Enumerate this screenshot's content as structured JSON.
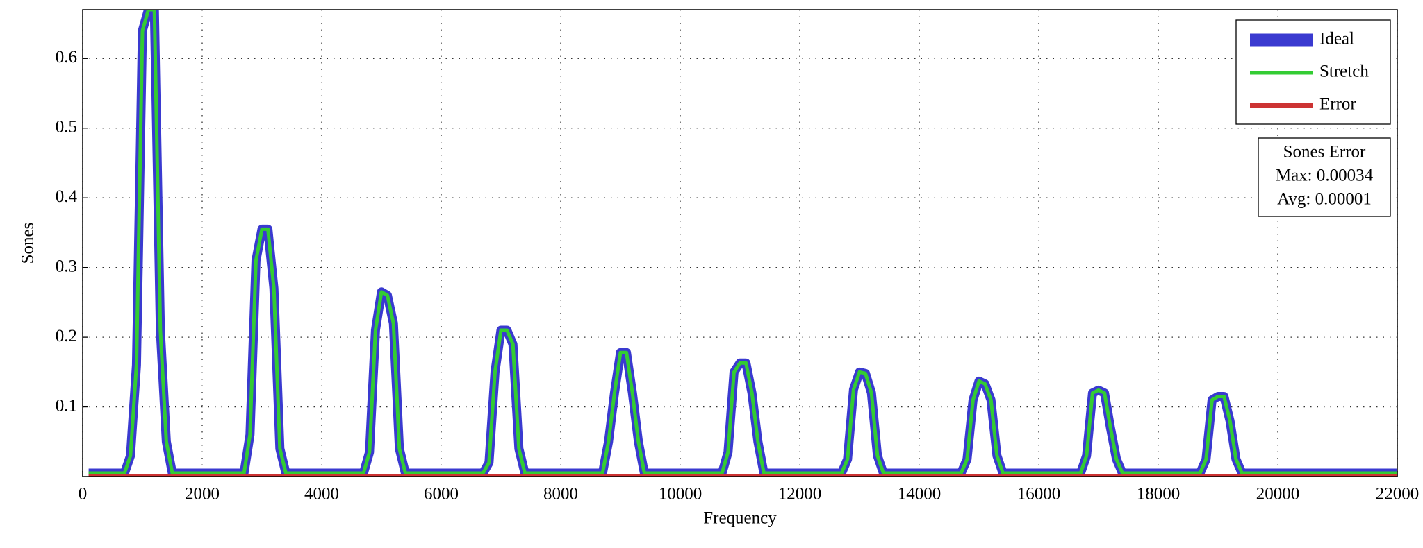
{
  "chart_data": {
    "type": "line",
    "x_label": "Frequency",
    "y_label": "Sones",
    "x": [
      100,
      700,
      800,
      900,
      1000,
      1100,
      1200,
      1300,
      1400,
      1500,
      2700,
      2800,
      2900,
      3000,
      3100,
      3200,
      3300,
      3400,
      3500,
      4700,
      4800,
      4900,
      5000,
      5100,
      5200,
      5300,
      5400,
      5500,
      6700,
      6800,
      6900,
      7000,
      7100,
      7200,
      7300,
      7400,
      7500,
      8700,
      8800,
      8900,
      9000,
      9100,
      9200,
      9300,
      9400,
      9500,
      10700,
      10800,
      10900,
      11000,
      11100,
      11200,
      11300,
      11400,
      11500,
      12700,
      12800,
      12900,
      13000,
      13100,
      13200,
      13300,
      13400,
      13500,
      14700,
      14800,
      14900,
      15000,
      15100,
      15200,
      15300,
      15400,
      15500,
      16700,
      16800,
      16900,
      17000,
      17100,
      17200,
      17300,
      17400,
      17500,
      18700,
      18800,
      18900,
      19000,
      19100,
      19200,
      19300,
      19400,
      19500,
      22000
    ],
    "series": [
      {
        "name": "Ideal",
        "color": "#3a3ad0",
        "values": [
          0.005,
          0.005,
          0.03,
          0.16,
          0.64,
          0.67,
          0.67,
          0.21,
          0.05,
          0.005,
          0.005,
          0.06,
          0.31,
          0.355,
          0.355,
          0.27,
          0.04,
          0.005,
          0.005,
          0.005,
          0.035,
          0.21,
          0.265,
          0.26,
          0.22,
          0.04,
          0.005,
          0.005,
          0.005,
          0.02,
          0.15,
          0.21,
          0.21,
          0.19,
          0.04,
          0.005,
          0.005,
          0.005,
          0.05,
          0.12,
          0.178,
          0.178,
          0.12,
          0.05,
          0.005,
          0.005,
          0.005,
          0.035,
          0.15,
          0.163,
          0.163,
          0.12,
          0.05,
          0.005,
          0.005,
          0.005,
          0.025,
          0.125,
          0.15,
          0.148,
          0.12,
          0.03,
          0.005,
          0.005,
          0.005,
          0.025,
          0.11,
          0.137,
          0.133,
          0.11,
          0.03,
          0.005,
          0.005,
          0.005,
          0.03,
          0.12,
          0.124,
          0.12,
          0.07,
          0.025,
          0.005,
          0.005,
          0.005,
          0.025,
          0.11,
          0.115,
          0.115,
          0.08,
          0.025,
          0.005,
          0.005,
          0.005
        ]
      },
      {
        "name": "Stretch",
        "color": "#33cc33",
        "values": [
          0.005,
          0.005,
          0.03,
          0.16,
          0.64,
          0.67,
          0.67,
          0.21,
          0.05,
          0.005,
          0.005,
          0.06,
          0.31,
          0.355,
          0.355,
          0.27,
          0.04,
          0.005,
          0.005,
          0.005,
          0.035,
          0.21,
          0.265,
          0.26,
          0.22,
          0.04,
          0.005,
          0.005,
          0.005,
          0.02,
          0.15,
          0.21,
          0.21,
          0.19,
          0.04,
          0.005,
          0.005,
          0.005,
          0.05,
          0.12,
          0.178,
          0.178,
          0.12,
          0.05,
          0.005,
          0.005,
          0.005,
          0.035,
          0.15,
          0.163,
          0.163,
          0.12,
          0.05,
          0.005,
          0.005,
          0.005,
          0.025,
          0.125,
          0.15,
          0.148,
          0.12,
          0.03,
          0.005,
          0.005,
          0.005,
          0.025,
          0.11,
          0.137,
          0.133,
          0.11,
          0.03,
          0.005,
          0.005,
          0.005,
          0.03,
          0.12,
          0.124,
          0.12,
          0.07,
          0.025,
          0.005,
          0.005,
          0.005,
          0.025,
          0.11,
          0.115,
          0.115,
          0.08,
          0.025,
          0.005,
          0.005,
          0.005
        ]
      },
      {
        "name": "Error",
        "color": "#cc3333",
        "values": [
          0,
          0,
          0,
          0,
          0,
          0,
          0,
          0,
          0,
          0,
          0,
          0,
          0,
          0,
          0,
          0,
          0,
          0,
          0,
          0,
          0,
          0,
          0,
          0,
          0,
          0,
          0,
          0,
          0,
          0,
          0,
          0,
          0,
          0,
          0,
          0,
          0,
          0,
          0,
          0,
          0,
          0,
          0,
          0,
          0,
          0,
          0,
          0,
          0,
          0,
          0,
          0,
          0,
          0,
          0,
          0,
          0,
          0,
          0,
          0,
          0,
          0,
          0,
          0,
          0,
          0,
          0,
          0,
          0,
          0,
          0,
          0,
          0,
          0,
          0,
          0,
          0,
          0,
          0,
          0,
          0,
          0,
          0,
          0,
          0,
          0,
          0,
          0,
          0,
          0,
          0,
          0
        ]
      }
    ],
    "xlim": [
      0,
      22000
    ],
    "xticks": [
      0,
      2000,
      4000,
      6000,
      8000,
      10000,
      12000,
      14000,
      16000,
      18000,
      20000,
      22000
    ],
    "ylim": [
      0,
      0.67
    ],
    "yticks": [
      0.1,
      0.2,
      0.3,
      0.4,
      0.5,
      0.6
    ],
    "grid": true,
    "legend": "northeast",
    "annotation": [
      "Sones Error",
      "Max: 0.00034",
      "Avg: 0.00001"
    ]
  }
}
